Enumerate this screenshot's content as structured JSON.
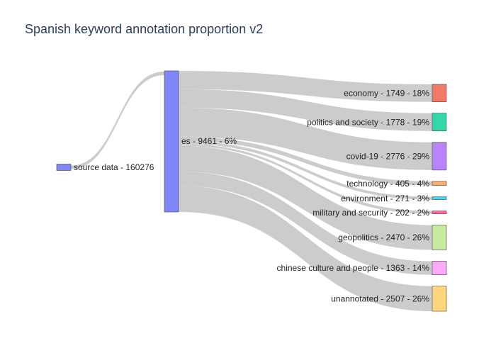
{
  "chart_data": {
    "type": "sankey",
    "title": "Spanish keyword annotation proportion v2",
    "nodes": [
      {
        "id": "source",
        "label": "source data - 160276",
        "value": 160276,
        "color": "#7f86f7"
      },
      {
        "id": "es",
        "label": "es - 9461 - 6%",
        "value": 9461,
        "percent": 6,
        "color": "#7f86f7"
      },
      {
        "id": "economy",
        "label": "economy - 1749 - 18%",
        "value": 1749,
        "percent": 18,
        "color": "#f07a67"
      },
      {
        "id": "politics",
        "label": "politics and society - 1778 - 19%",
        "value": 1778,
        "percent": 19,
        "color": "#35d6a7"
      },
      {
        "id": "covid",
        "label": "covid-19 - 2776 - 29%",
        "value": 2776,
        "percent": 29,
        "color": "#b983fa"
      },
      {
        "id": "technology",
        "label": "technology - 405 - 4%",
        "value": 405,
        "percent": 4,
        "color": "#ffad73"
      },
      {
        "id": "environment",
        "label": "environment - 271 - 3%",
        "value": 271,
        "percent": 3,
        "color": "#4ed3f1"
      },
      {
        "id": "military",
        "label": "military and security - 202 - 2%",
        "value": 202,
        "percent": 2,
        "color": "#fc6e95"
      },
      {
        "id": "geopolitics",
        "label": "geopolitics - 2470 - 26%",
        "value": 2470,
        "percent": 26,
        "color": "#c7eca0"
      },
      {
        "id": "culture",
        "label": "chinese culture and people - 1363 - 14%",
        "value": 1363,
        "percent": 14,
        "color": "#fcaafb"
      },
      {
        "id": "unannotated",
        "label": "unannotated - 2507 - 26%",
        "value": 2507,
        "percent": 26,
        "color": "#fed67d"
      }
    ],
    "links": [
      {
        "source": "source",
        "target": "es",
        "value": 9461
      },
      {
        "source": "es",
        "target": "economy",
        "value": 1749
      },
      {
        "source": "es",
        "target": "politics",
        "value": 1778
      },
      {
        "source": "es",
        "target": "covid",
        "value": 2776
      },
      {
        "source": "es",
        "target": "technology",
        "value": 405
      },
      {
        "source": "es",
        "target": "environment",
        "value": 271
      },
      {
        "source": "es",
        "target": "military",
        "value": 202
      },
      {
        "source": "es",
        "target": "geopolitics",
        "value": 2470
      },
      {
        "source": "es",
        "target": "culture",
        "value": 1363
      },
      {
        "source": "es",
        "target": "unannotated",
        "value": 2507
      }
    ],
    "link_color": "#cccccc"
  }
}
